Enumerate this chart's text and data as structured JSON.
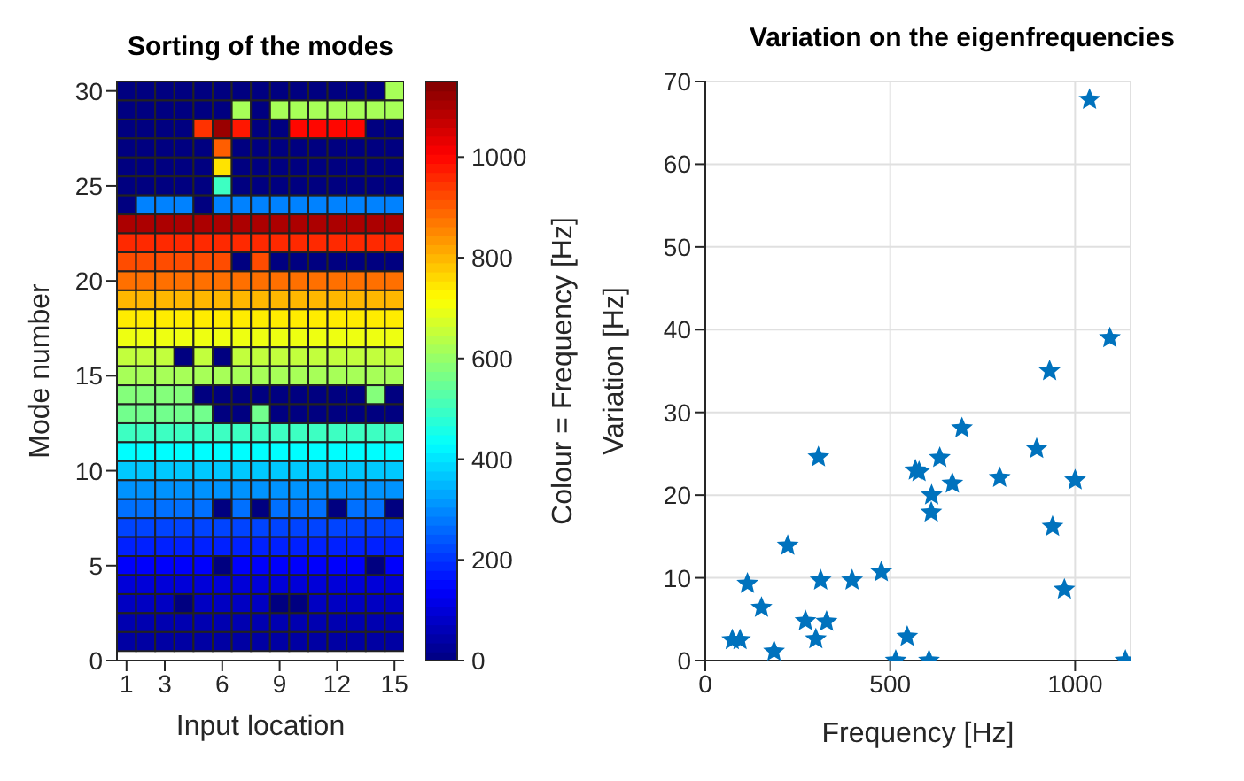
{
  "chart_data": [
    {
      "type": "heatmap",
      "title": "Sorting of the modes",
      "xlabel": "Input location",
      "ylabel": "Mode number",
      "clabel": "Colour = Frequency [Hz]",
      "xlim": [
        0.5,
        15.5
      ],
      "xticks": [
        1,
        3,
        6,
        9,
        12,
        15
      ],
      "ylim": [
        0,
        30.5
      ],
      "yticks": [
        0,
        5,
        10,
        15,
        20,
        25,
        30
      ],
      "clim": [
        0,
        1150
      ],
      "cticks": [
        0,
        200,
        400,
        600,
        800,
        1000
      ],
      "cells": [
        [
          0,
          0,
          0,
          0,
          0,
          0,
          0,
          0,
          0,
          0,
          0,
          0,
          0,
          0,
          620
        ],
        [
          0,
          0,
          0,
          0,
          0,
          0,
          620,
          0,
          620,
          620,
          620,
          620,
          620,
          620,
          620
        ],
        [
          0,
          0,
          0,
          0,
          950,
          1120,
          980,
          0,
          0,
          1000,
          1000,
          1000,
          1000,
          0,
          0
        ],
        [
          0,
          0,
          0,
          0,
          0,
          900,
          0,
          0,
          0,
          0,
          0,
          0,
          0,
          0,
          0
        ],
        [
          0,
          0,
          0,
          0,
          0,
          750,
          0,
          0,
          0,
          0,
          0,
          0,
          0,
          0,
          0
        ],
        [
          0,
          0,
          0,
          0,
          0,
          500,
          0,
          0,
          0,
          0,
          0,
          0,
          0,
          0,
          0
        ],
        [
          0,
          290,
          290,
          290,
          0,
          290,
          290,
          290,
          290,
          290,
          290,
          290,
          290,
          290,
          290
        ],
        [
          1100,
          1100,
          1100,
          1100,
          1100,
          1100,
          1100,
          1100,
          1100,
          1100,
          1100,
          1100,
          1100,
          1100,
          1100
        ],
        [
          960,
          960,
          960,
          960,
          960,
          960,
          960,
          960,
          960,
          960,
          960,
          960,
          960,
          960,
          960
        ],
        [
          920,
          920,
          920,
          920,
          920,
          920,
          0,
          920,
          0,
          0,
          0,
          0,
          0,
          0,
          0
        ],
        [
          880,
          880,
          880,
          880,
          880,
          880,
          880,
          880,
          880,
          880,
          880,
          880,
          880,
          880,
          880
        ],
        [
          800,
          800,
          800,
          800,
          800,
          800,
          800,
          800,
          800,
          800,
          800,
          800,
          800,
          800,
          800
        ],
        [
          740,
          740,
          740,
          740,
          740,
          740,
          740,
          740,
          740,
          740,
          740,
          740,
          740,
          740,
          740
        ],
        [
          700,
          700,
          700,
          700,
          700,
          700,
          700,
          700,
          700,
          700,
          700,
          700,
          700,
          700,
          700
        ],
        [
          650,
          650,
          650,
          0,
          650,
          0,
          650,
          650,
          650,
          650,
          650,
          650,
          650,
          650,
          650
        ],
        [
          620,
          620,
          620,
          620,
          620,
          620,
          620,
          620,
          620,
          620,
          620,
          620,
          620,
          620,
          620
        ],
        [
          580,
          580,
          580,
          580,
          0,
          0,
          0,
          0,
          0,
          0,
          0,
          0,
          0,
          580,
          0
        ],
        [
          560,
          560,
          560,
          560,
          560,
          0,
          0,
          560,
          0,
          0,
          0,
          0,
          0,
          0,
          0
        ],
        [
          500,
          500,
          500,
          500,
          500,
          500,
          500,
          500,
          500,
          500,
          500,
          500,
          500,
          500,
          500
        ],
        [
          430,
          430,
          430,
          430,
          430,
          430,
          430,
          430,
          430,
          430,
          430,
          430,
          430,
          430,
          430
        ],
        [
          370,
          370,
          370,
          370,
          370,
          370,
          370,
          370,
          370,
          370,
          370,
          370,
          370,
          370,
          370
        ],
        [
          310,
          310,
          310,
          310,
          310,
          310,
          310,
          310,
          310,
          310,
          310,
          310,
          310,
          310,
          310
        ],
        [
          270,
          270,
          270,
          270,
          270,
          0,
          270,
          0,
          270,
          270,
          270,
          0,
          270,
          270,
          0
        ],
        [
          220,
          220,
          220,
          220,
          220,
          220,
          220,
          220,
          220,
          220,
          220,
          220,
          220,
          220,
          220
        ],
        [
          180,
          180,
          180,
          180,
          180,
          180,
          180,
          180,
          180,
          180,
          180,
          180,
          180,
          180,
          180
        ],
        [
          140,
          140,
          140,
          140,
          140,
          0,
          140,
          140,
          140,
          140,
          140,
          140,
          140,
          0,
          140
        ],
        [
          100,
          100,
          100,
          100,
          100,
          100,
          100,
          100,
          100,
          100,
          100,
          100,
          100,
          100,
          100
        ],
        [
          75,
          75,
          75,
          0,
          75,
          75,
          75,
          75,
          0,
          0,
          75,
          75,
          75,
          75,
          75
        ],
        [
          55,
          55,
          55,
          55,
          55,
          55,
          55,
          55,
          55,
          55,
          55,
          55,
          55,
          55,
          55
        ],
        [
          40,
          40,
          40,
          40,
          40,
          40,
          40,
          40,
          40,
          40,
          40,
          40,
          40,
          40,
          40
        ]
      ]
    },
    {
      "type": "scatter",
      "title": "Variation on the eigenfrequencies",
      "xlabel": "Frequency [Hz]",
      "ylabel": "Variation [Hz]",
      "xlim": [
        0,
        1150
      ],
      "xticks": [
        0,
        500,
        1000
      ],
      "ylim": [
        0,
        70
      ],
      "yticks": [
        0,
        10,
        20,
        30,
        40,
        50,
        60,
        70
      ],
      "grid": true,
      "marker": "star",
      "color": "#0072bd",
      "x": [
        73,
        94,
        114,
        152,
        186,
        223,
        271,
        299,
        306,
        312,
        328,
        397,
        476,
        515,
        546,
        568,
        578,
        605,
        612,
        611,
        634,
        668,
        694,
        796,
        896,
        939,
        971,
        1000,
        1136,
        931,
        1039,
        1094
      ],
      "values": [
        2.5,
        2.5,
        9.3,
        6.4,
        1.1,
        13.9,
        4.8,
        2.6,
        24.6,
        9.7,
        4.7,
        9.7,
        10.7,
        0,
        2.9,
        23,
        22.8,
        0,
        20,
        17.9,
        24.5,
        21.4,
        28.1,
        22.1,
        25.6,
        16.2,
        8.6,
        21.8,
        0,
        35,
        67.8,
        39
      ]
    }
  ]
}
